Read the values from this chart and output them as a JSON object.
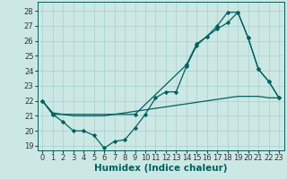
{
  "xlabel": "Humidex (Indice chaleur)",
  "bg_color": "#cce8e4",
  "line_color": "#006060",
  "grid_color": "#aacfcb",
  "xlim": [
    -0.5,
    23.5
  ],
  "ylim": [
    18.7,
    28.6
  ],
  "yticks": [
    19,
    20,
    21,
    22,
    23,
    24,
    25,
    26,
    27,
    28
  ],
  "xticks": [
    0,
    1,
    2,
    3,
    4,
    5,
    6,
    7,
    8,
    9,
    10,
    11,
    12,
    13,
    14,
    15,
    16,
    17,
    18,
    19,
    20,
    21,
    22,
    23
  ],
  "line1_x": [
    0,
    1,
    2,
    3,
    4,
    5,
    6,
    7,
    8,
    9,
    10,
    11,
    12,
    13,
    14,
    15,
    16,
    17,
    18,
    19,
    20,
    21,
    22,
    23
  ],
  "line1_y": [
    22.0,
    21.1,
    20.6,
    20.0,
    20.0,
    19.7,
    18.85,
    19.3,
    19.4,
    20.2,
    21.1,
    22.2,
    22.6,
    22.6,
    24.3,
    25.7,
    26.3,
    26.8,
    27.2,
    27.9,
    26.2,
    24.1,
    23.3,
    22.2
  ],
  "line2_x": [
    0,
    1,
    2,
    3,
    4,
    5,
    6,
    7,
    8,
    9,
    10,
    11,
    12,
    13,
    14,
    15,
    16,
    17,
    18,
    19,
    20,
    21,
    22,
    23
  ],
  "line2_y": [
    22.0,
    21.2,
    21.1,
    21.0,
    21.0,
    21.0,
    21.0,
    21.1,
    21.2,
    21.3,
    21.4,
    21.5,
    21.6,
    21.7,
    21.8,
    21.9,
    22.0,
    22.1,
    22.2,
    22.3,
    22.3,
    22.3,
    22.2,
    22.2
  ],
  "line3_x": [
    0,
    1,
    9,
    14,
    15,
    16,
    17,
    18,
    19,
    20,
    21,
    22,
    23
  ],
  "line3_y": [
    22.0,
    21.1,
    21.1,
    24.4,
    25.8,
    26.3,
    27.0,
    27.9,
    27.9,
    26.2,
    24.1,
    23.3,
    22.2
  ],
  "fontsize_xlabel": 7.5,
  "fontsize_ticks": 6.0
}
